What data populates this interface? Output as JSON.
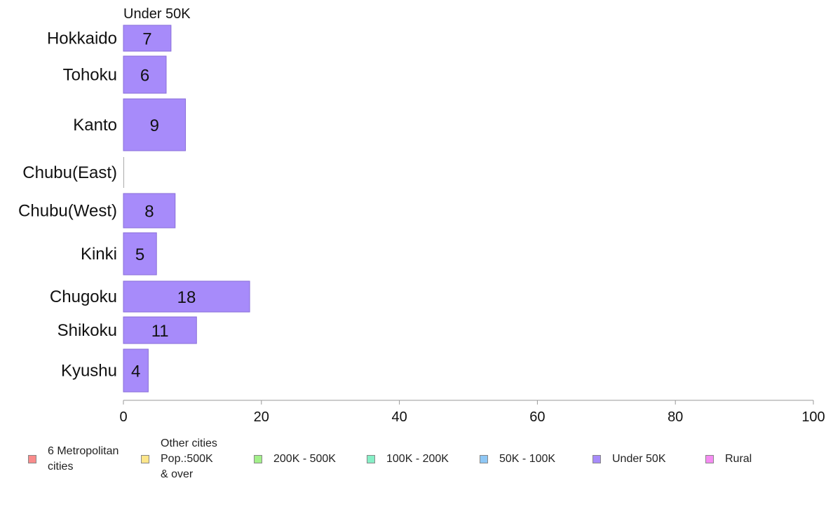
{
  "chart_data": {
    "type": "bar",
    "orientation": "horizontal",
    "title": "Under 50K",
    "categories": [
      "Hokkaido",
      "Tohoku",
      "Kanto",
      "Chubu(East)",
      "Chubu(West)",
      "Kinki",
      "Chugoku",
      "Shikoku",
      "Kyushu"
    ],
    "values": [
      7,
      6,
      9,
      0,
      8,
      5,
      18,
      11,
      4
    ],
    "data_labels": [
      "7",
      "6",
      "9",
      "",
      "8",
      "5",
      "18",
      "11",
      "4"
    ],
    "relative_widths": [
      0.69,
      0.62,
      0.9,
      0,
      0.75,
      0.48,
      1.83,
      1.06,
      0.36
    ],
    "xlim": [
      0,
      100
    ],
    "xticks": [
      0,
      20,
      40,
      60,
      80,
      100
    ],
    "xlabel": "",
    "ylabel": "",
    "grid": false,
    "bar_color": "#a78bfa",
    "bar_border": "#8a6fd8",
    "legend_position": "bottom",
    "legend": [
      {
        "label": "6 Metropolitan\n cities",
        "color": "#f98b8b"
      },
      {
        "label": "Other cities\nPop.:500K\n & over",
        "color": "#fde68a"
      },
      {
        "label": "200K - 500K",
        "color": "#a3f08a"
      },
      {
        "label": "100K - 200K",
        "color": "#86efc6"
      },
      {
        "label": "50K - 100K",
        "color": "#8ec7f5"
      },
      {
        "label": "Under 50K",
        "color": "#a78bfa"
      },
      {
        "label": "Rural",
        "color": "#f58cf2"
      }
    ]
  }
}
